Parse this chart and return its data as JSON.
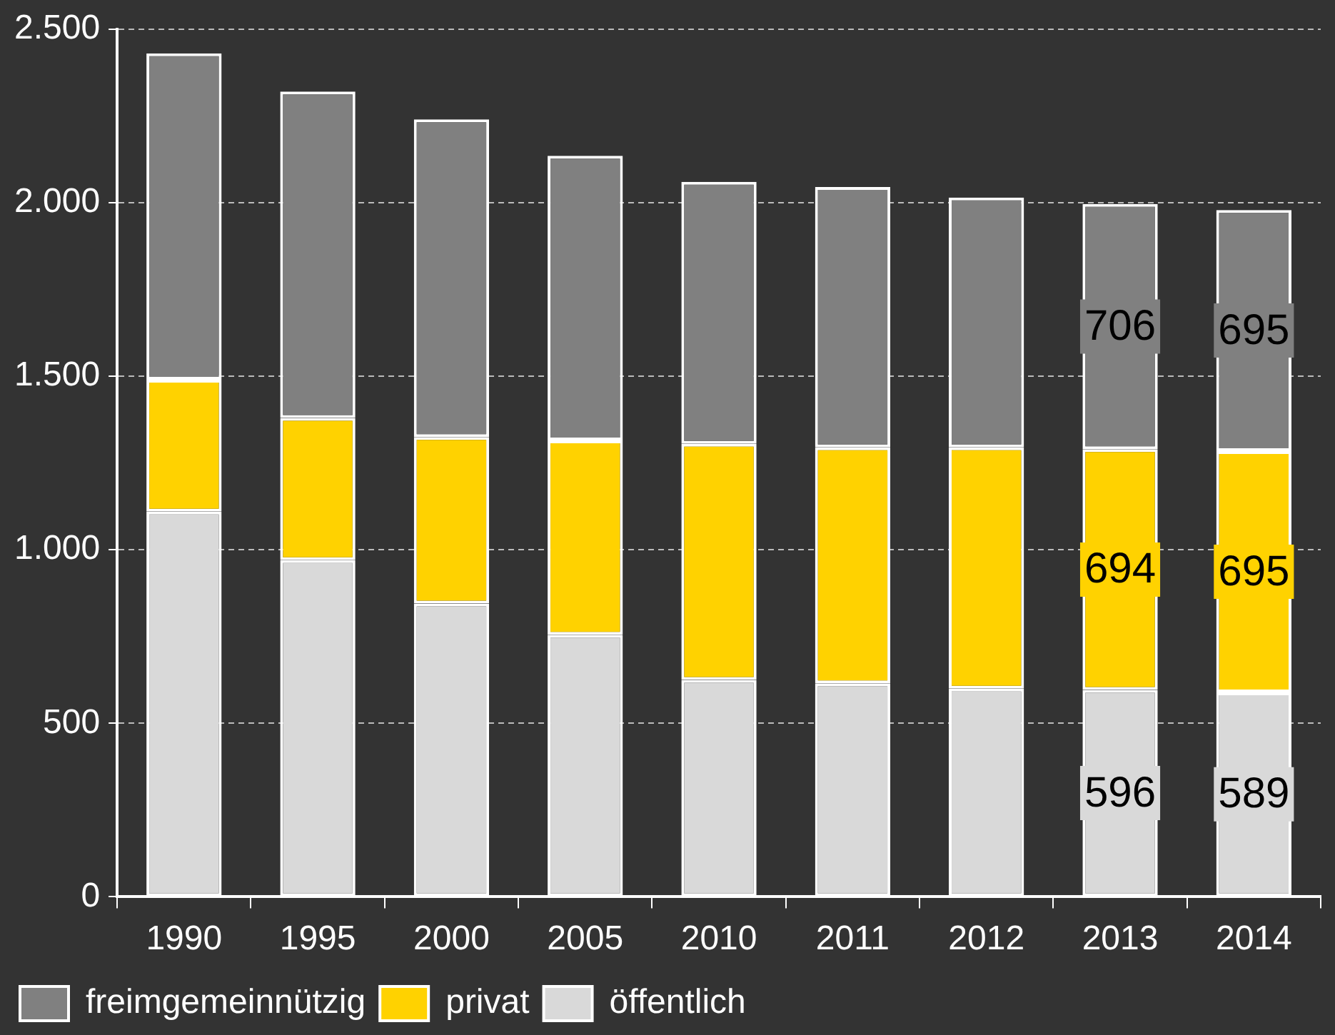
{
  "chart_data": {
    "type": "bar",
    "stacked": true,
    "categories": [
      "1990",
      "1995",
      "2000",
      "2005",
      "2010",
      "2011",
      "2012",
      "2013",
      "2014"
    ],
    "series": [
      {
        "name": "öffentlich",
        "color": "#d9d9d9",
        "values": [
          1110,
          970,
          845,
          755,
          625,
          615,
          600,
          596,
          589
        ],
        "value_labels": [
          null,
          null,
          null,
          null,
          null,
          null,
          null,
          "596",
          "589"
        ]
      },
      {
        "name": "privat",
        "color": "#ffd200",
        "values": [
          380,
          410,
          480,
          560,
          680,
          680,
          695,
          694,
          695
        ],
        "value_labels": [
          null,
          null,
          null,
          null,
          null,
          null,
          null,
          "694",
          "695"
        ]
      },
      {
        "name": "freimgemeinnützig",
        "color": "#808080",
        "values": [
          940,
          940,
          915,
          820,
          755,
          750,
          720,
          706,
          695
        ],
        "value_labels": [
          null,
          null,
          null,
          null,
          null,
          null,
          null,
          "706",
          "695"
        ]
      }
    ],
    "ylim": [
      0,
      2500
    ],
    "yticks": [
      0,
      {
        "value": 500,
        "label": "500"
      },
      {
        "value": 1000,
        "label": "1.000"
      },
      {
        "value": 1500,
        "label": "1.500"
      },
      {
        "value": 2000,
        "label": "2.000"
      },
      {
        "value": 2500,
        "label": "2.500"
      }
    ],
    "grid": "y",
    "legend": "bottom left"
  }
}
